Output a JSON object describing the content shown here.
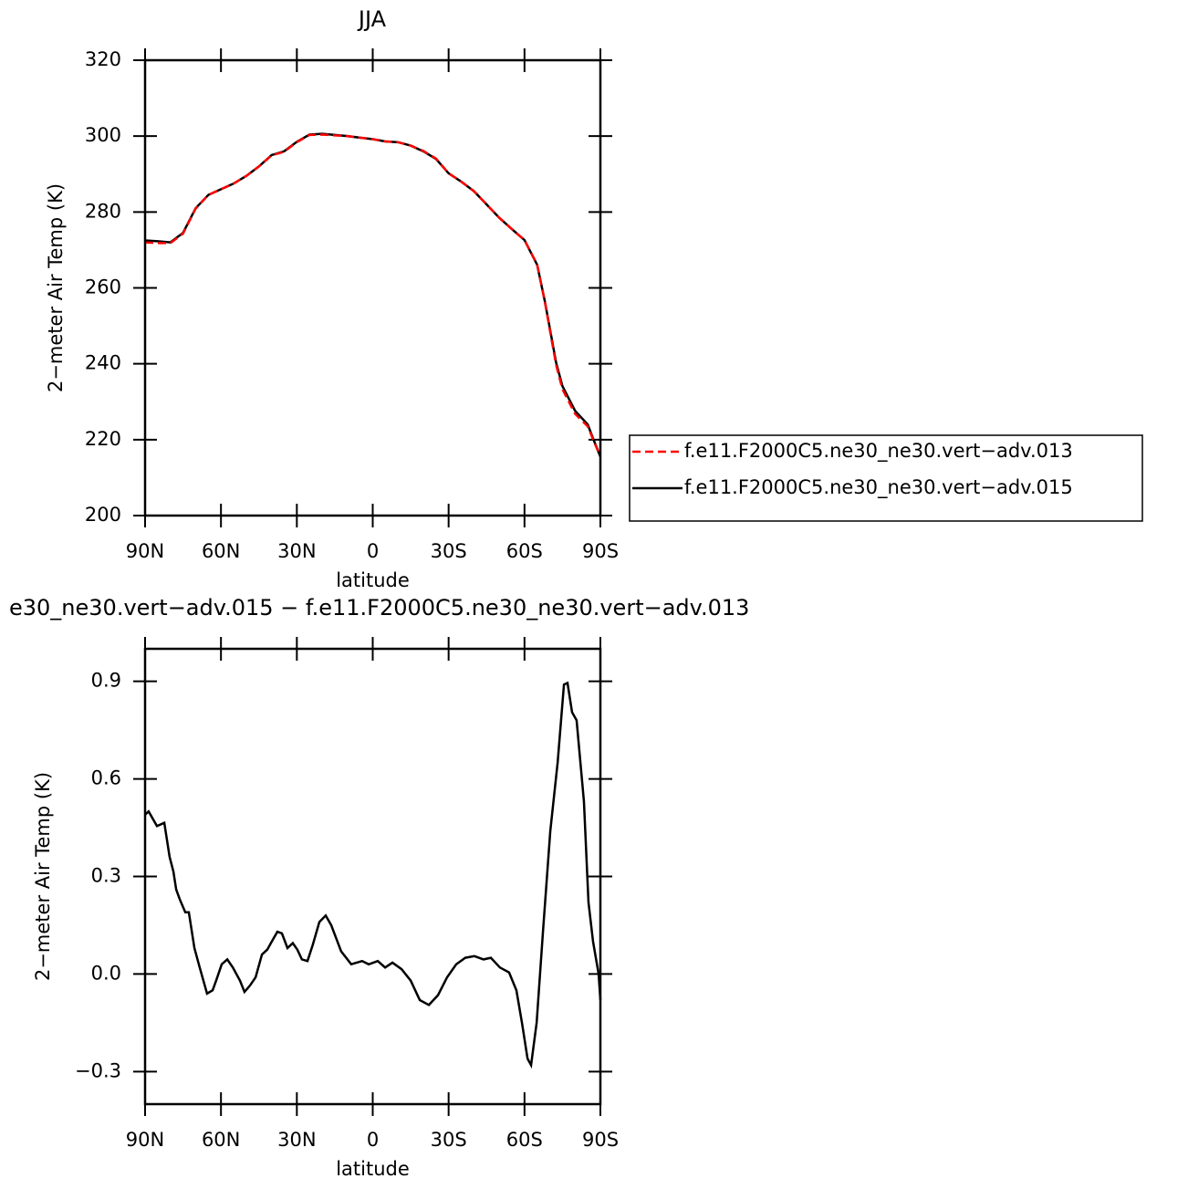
{
  "chart_data": [
    {
      "type": "line",
      "title": "JJA",
      "x_label": "latitude",
      "y_label": "2−meter Air Temp (K)",
      "x": [
        90,
        85,
        80,
        75,
        70,
        65,
        60,
        55,
        50,
        45,
        40,
        35,
        30,
        25,
        20,
        15,
        10,
        5,
        0,
        -5,
        -10,
        -15,
        -20,
        -25,
        -30,
        -35,
        -40,
        -45,
        -50,
        -55,
        -60,
        -65,
        -68,
        -70,
        -72.5,
        -75,
        -80,
        -85,
        -87,
        -90
      ],
      "series": [
        {
          "name": "f.e11.F2000C5.ne30_ne30.vert−adv.013",
          "color": "#ff0000",
          "dashed": true,
          "values": [
            272.0,
            271.8,
            271.8,
            274.3,
            280.9,
            284.5,
            286.0,
            287.5,
            289.5,
            292.0,
            294.9,
            295.9,
            298.4,
            300.3,
            300.4,
            300.2,
            300.0,
            299.6,
            299.2,
            298.6,
            298.4,
            297.5,
            296.1,
            294.1,
            290.2,
            288.0,
            285.5,
            282.0,
            278.5,
            275.5,
            272.6,
            266.2,
            256.5,
            249.0,
            239.7,
            233.3,
            226.8,
            223.5,
            220.3,
            215.5
          ]
        },
        {
          "name": "f.e11.F2000C5.ne30_ne30.vert−adv.015",
          "color": "#000000",
          "dashed": false,
          "values": [
            272.5,
            272.3,
            272.0,
            274.5,
            281.0,
            284.5,
            286.0,
            287.5,
            289.5,
            292.0,
            295.0,
            296.0,
            298.5,
            300.4,
            300.6,
            300.3,
            300.0,
            299.6,
            299.2,
            298.6,
            298.4,
            297.5,
            296.0,
            294.0,
            290.2,
            288.0,
            285.5,
            282.0,
            278.5,
            275.5,
            272.6,
            266.1,
            256.6,
            249.4,
            240.3,
            234.1,
            227.6,
            224.0,
            220.5,
            215.5
          ]
        }
      ],
      "xlim": [
        90,
        -90
      ],
      "xticks": [
        {
          "value": 90,
          "label": "90N"
        },
        {
          "value": 60,
          "label": "60N"
        },
        {
          "value": 30,
          "label": "30N"
        },
        0,
        {
          "value": -30,
          "label": "30S"
        },
        {
          "value": -60,
          "label": "60S"
        },
        {
          "value": -90,
          "label": "90S"
        }
      ],
      "ylim": [
        200,
        320
      ],
      "yticks": [
        200,
        220,
        240,
        260,
        280,
        300,
        320
      ],
      "legend": "right"
    },
    {
      "type": "line",
      "title": "e30_ne30.vert−adv.015 − f.e11.F2000C5.ne30_ne30.vert−adv.013",
      "x_label": "latitude",
      "y_label": "2−meter Air Temp (K)",
      "x": [
        90,
        88.6,
        85.3,
        82.4,
        80.3,
        78.8,
        77.7,
        76.3,
        74.1,
        72.7,
        70.5,
        68.4,
        65.5,
        63.3,
        61.9,
        59.7,
        57.5,
        55.3,
        52.5,
        50.7,
        48.5,
        46.3,
        43.8,
        41.7,
        39.9,
        37.7,
        35.9,
        33.7,
        31.6,
        29.8,
        28.0,
        25.8,
        23.7,
        21.1,
        18.6,
        16.4,
        12.5,
        8.5,
        4.2,
        1.6,
        -2.0,
        -4.9,
        -7.8,
        -11.4,
        -15.0,
        -18.6,
        -22.2,
        -25.8,
        -29.4,
        -33.0,
        -36.6,
        -40.2,
        -43.8,
        -46.7,
        -50.3,
        -53.9,
        -56.8,
        -59.0,
        -61.2,
        -62.6,
        -64.8,
        -67.3,
        -70.2,
        -73.1,
        -75.6,
        -77.0,
        -78.8,
        -80.6,
        -83.5,
        -85.3,
        -87.1,
        -89.3,
        -90
      ],
      "values": [
        0.49,
        0.5,
        0.455,
        0.465,
        0.36,
        0.315,
        0.26,
        0.23,
        0.19,
        0.19,
        0.08,
        0.02,
        -0.06,
        -0.05,
        -0.02,
        0.03,
        0.045,
        0.02,
        -0.02,
        -0.055,
        -0.035,
        -0.01,
        0.06,
        0.075,
        0.1,
        0.13,
        0.125,
        0.08,
        0.095,
        0.075,
        0.045,
        0.04,
        0.09,
        0.16,
        0.18,
        0.15,
        0.07,
        0.03,
        0.04,
        0.03,
        0.04,
        0.02,
        0.035,
        0.015,
        -0.02,
        -0.08,
        -0.095,
        -0.065,
        -0.01,
        0.03,
        0.05,
        0.055,
        0.045,
        0.05,
        0.02,
        0.005,
        -0.05,
        -0.15,
        -0.26,
        -0.28,
        -0.15,
        0.13,
        0.44,
        0.65,
        0.89,
        0.895,
        0.805,
        0.78,
        0.53,
        0.22,
        0.1,
        0.0,
        -0.08
      ],
      "color": "#000000",
      "xlim": [
        90,
        -90
      ],
      "xticks": [
        {
          "value": 90,
          "label": "90N"
        },
        {
          "value": 60,
          "label": "60N"
        },
        {
          "value": 30,
          "label": "30N"
        },
        0,
        {
          "value": -30,
          "label": "30S"
        },
        {
          "value": -60,
          "label": "60S"
        },
        {
          "value": -90,
          "label": "90S"
        }
      ],
      "ylim": [
        -0.4,
        1.0
      ],
      "yticks": [
        {
          "value": -0.3,
          "label": "−0.3"
        },
        {
          "value": 0,
          "label": "0.0"
        },
        0.3,
        0.6,
        0.9
      ]
    }
  ]
}
